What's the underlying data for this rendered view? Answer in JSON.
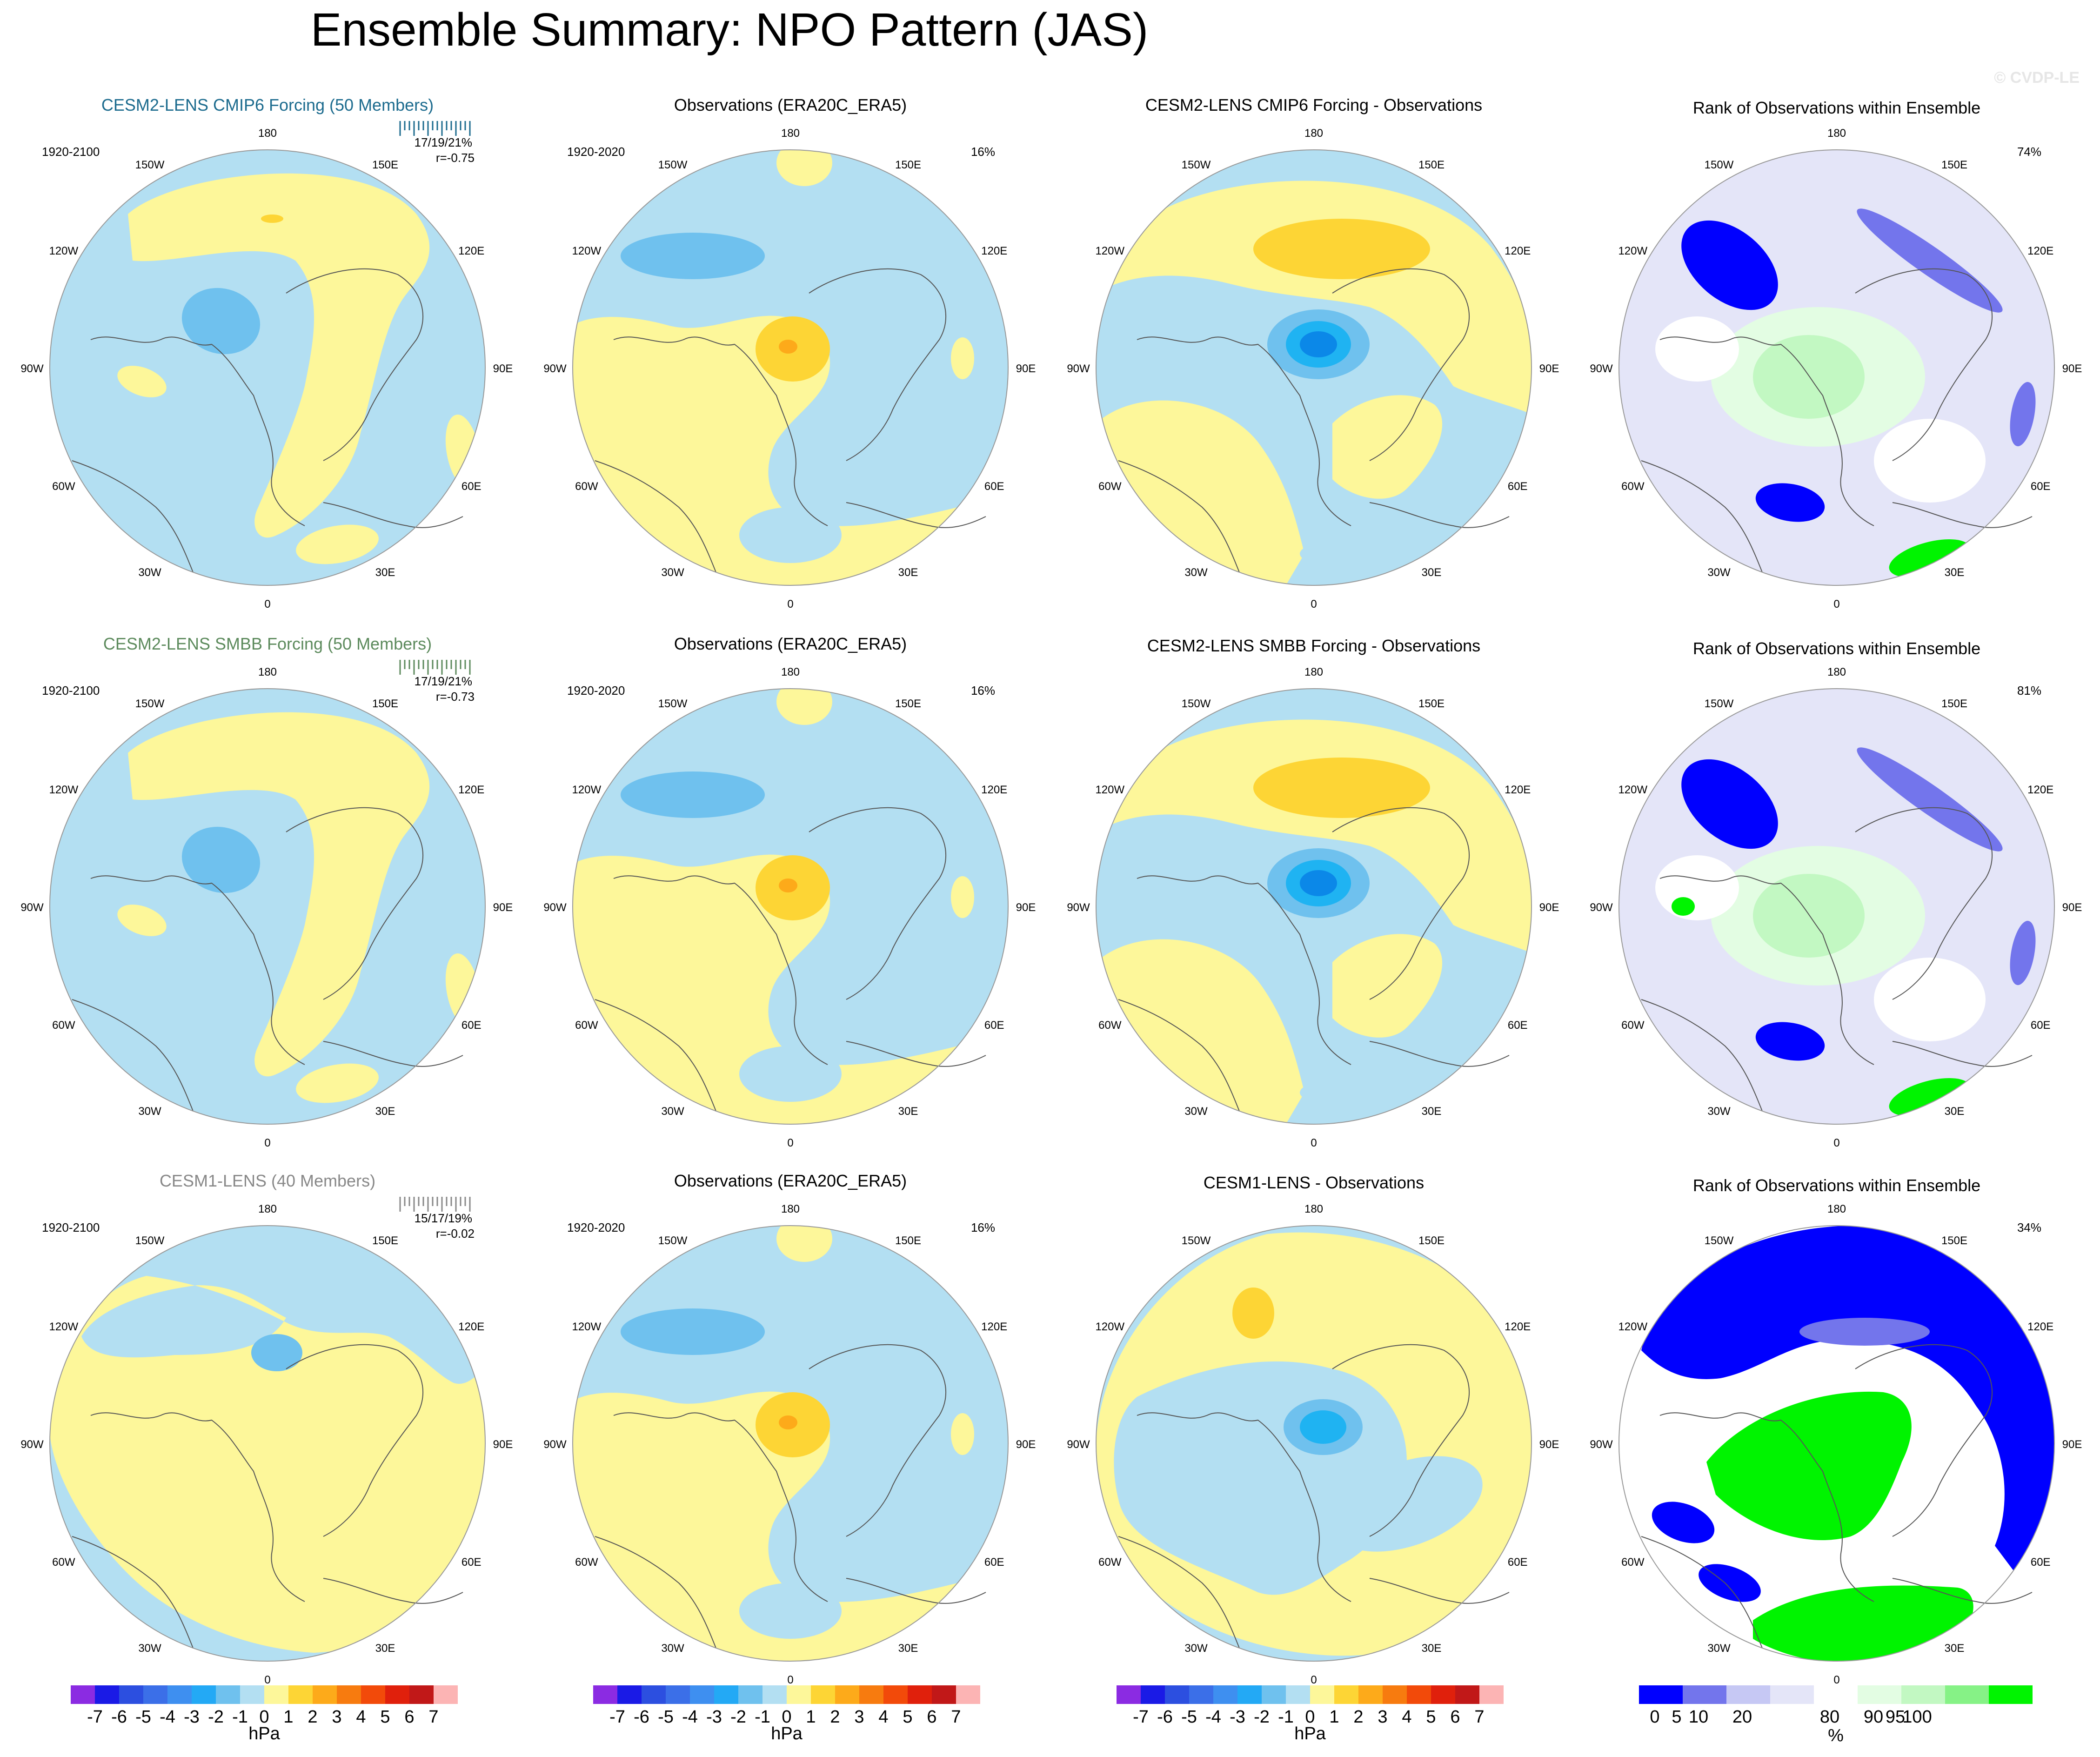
{
  "title": "Ensemble Summary: NPO Pattern (JAS)",
  "watermark": "© CVDP-LE",
  "units": {
    "pressure": "hPa",
    "rank": "%"
  },
  "colors": {
    "ocean_blue": "#b3dff2",
    "light_yellow": "#fdf79a",
    "mid_yellow": "#fdd535",
    "orange": "#fdaa1a",
    "dark_orange": "#f77b0f",
    "light_blue": "#6fc1ee",
    "mid_blue": "#1fb3f2",
    "dark_blue": "#0b88e8",
    "rank_blue": "#0000ff",
    "rank_mid": "#7375ec",
    "rank_light": "#c6c8f4",
    "rank_white": "#ffffff",
    "rank_lightgreen": "#dcfddc",
    "rank_green": "#00f400",
    "row_title_1": "#1c6b8e",
    "row_title_2": "#5c8a5c",
    "row_title_3": "#888888"
  },
  "lon_labels": [
    "180",
    "150E",
    "120E",
    "90E",
    "60E",
    "30E",
    "0",
    "30W",
    "60W",
    "90W",
    "120W",
    "150W"
  ],
  "rows": [
    {
      "model_title": "CESM2-LENS CMIP6 Forcing (50 Members)",
      "model_period": "1920-2100",
      "model_stats": "17/19/21%",
      "model_r": "r=-0.75",
      "obs_title": "Observations (ERA20C_ERA5)",
      "obs_period": "1920-2020",
      "obs_pct": "16%",
      "diff_title": "CESM2-LENS CMIP6 Forcing - Observations",
      "rank_title": "Rank of Observations within Ensemble",
      "rank_pct": "74%"
    },
    {
      "model_title": "CESM2-LENS SMBB Forcing (50 Members)",
      "model_period": "1920-2100",
      "model_stats": "17/19/21%",
      "model_r": "r=-0.73",
      "obs_title": "Observations (ERA20C_ERA5)",
      "obs_period": "1920-2020",
      "obs_pct": "16%",
      "diff_title": "CESM2-LENS SMBB Forcing - Observations",
      "rank_title": "Rank of Observations within Ensemble",
      "rank_pct": "81%"
    },
    {
      "model_title": "CESM1-LENS (40 Members)",
      "model_period": "1920-2100",
      "model_stats": "15/17/19%",
      "model_r": "r=-0.02",
      "obs_title": "Observations (ERA20C_ERA5)",
      "obs_period": "1920-2020",
      "obs_pct": "16%",
      "diff_title": "CESM1-LENS - Observations",
      "rank_title": "Rank of Observations within Ensemble",
      "rank_pct": "34%"
    }
  ],
  "chart_data": {
    "type": "heatmap",
    "projection": "north polar stereographic",
    "pressure_colorbar": {
      "label": "hPa",
      "levels": [
        "-7",
        "-6",
        "-5",
        "-4",
        "-3",
        "-2",
        "-1",
        "0",
        "1",
        "2",
        "3",
        "4",
        "5",
        "6",
        "7"
      ],
      "colors": [
        "#8b2be2",
        "#1a1ae6",
        "#2c4fe0",
        "#3b6fe8",
        "#3e8ff0",
        "#23a9f5",
        "#6fc1ee",
        "#b3dff2",
        "#fdf79a",
        "#fdd535",
        "#fdaa1a",
        "#f77b0f",
        "#f24a0a",
        "#e0200c",
        "#c11818",
        "#fcb4b4"
      ]
    },
    "rank_colorbar": {
      "label": "%",
      "levels": [
        "0",
        "5",
        "10",
        "20",
        "80",
        "90",
        "95",
        "100"
      ],
      "colors": [
        "#0000ff",
        "#7375ec",
        "#c6c8f4",
        "#e4e5f8",
        "#ffffff",
        "#e3fde3",
        "#c2f8c2",
        "#86f286",
        "#00f400"
      ]
    },
    "panels": [
      {
        "row": 1,
        "col": "model",
        "title": "CESM2-LENS CMIP6 Forcing (50 Members)",
        "period": "1920-2100",
        "pattern_stats": "17/19/21%",
        "r": -0.75
      },
      {
        "row": 1,
        "col": "obs",
        "title": "Observations (ERA20C_ERA5)",
        "period": "1920-2020",
        "pct_variance": 16
      },
      {
        "row": 1,
        "col": "diff",
        "title": "CESM2-LENS CMIP6 Forcing - Observations"
      },
      {
        "row": 1,
        "col": "rank",
        "title": "Rank of Observations within Ensemble",
        "pct": 74
      },
      {
        "row": 2,
        "col": "model",
        "title": "CESM2-LENS SMBB Forcing (50 Members)",
        "period": "1920-2100",
        "pattern_stats": "17/19/21%",
        "r": -0.73
      },
      {
        "row": 2,
        "col": "obs",
        "title": "Observations (ERA20C_ERA5)",
        "period": "1920-2020",
        "pct_variance": 16
      },
      {
        "row": 2,
        "col": "diff",
        "title": "CESM2-LENS SMBB Forcing - Observations"
      },
      {
        "row": 2,
        "col": "rank",
        "title": "Rank of Observations within Ensemble",
        "pct": 81
      },
      {
        "row": 3,
        "col": "model",
        "title": "CESM1-LENS (40 Members)",
        "period": "1920-2100",
        "pattern_stats": "15/17/19%",
        "r": -0.02
      },
      {
        "row": 3,
        "col": "obs",
        "title": "Observations (ERA20C_ERA5)",
        "period": "1920-2020",
        "pct_variance": 16
      },
      {
        "row": 3,
        "col": "diff",
        "title": "CESM1-LENS - Observations"
      },
      {
        "row": 3,
        "col": "rank",
        "title": "Rank of Observations within Ensemble",
        "pct": 34
      }
    ]
  }
}
